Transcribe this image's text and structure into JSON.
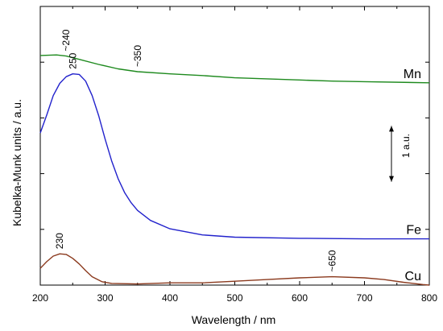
{
  "chart_data": {
    "type": "line",
    "xlabel": "Wavelength / nm",
    "ylabel": "Kubelka-Munk units / a.u.",
    "xlim": [
      200,
      800
    ],
    "ylim": [
      0,
      5
    ],
    "x_ticks": [
      "200",
      "300",
      "400",
      "500",
      "600",
      "700",
      "800"
    ],
    "grid": false,
    "legend": "none",
    "scale_bar": {
      "label": "1 a.u.",
      "value": 1
    },
    "series": [
      {
        "name": "Mn",
        "color": "#1e8a1e",
        "points": [
          [
            200,
            4.12
          ],
          [
            225,
            4.13
          ],
          [
            240,
            4.11
          ],
          [
            260,
            4.05
          ],
          [
            290,
            3.96
          ],
          [
            320,
            3.88
          ],
          [
            350,
            3.83
          ],
          [
            400,
            3.79
          ],
          [
            450,
            3.76
          ],
          [
            500,
            3.72
          ],
          [
            600,
            3.68
          ],
          [
            650,
            3.66
          ],
          [
            700,
            3.65
          ],
          [
            800,
            3.63
          ]
        ]
      },
      {
        "name": "Fe",
        "color": "#2222cc",
        "points": [
          [
            200,
            2.73
          ],
          [
            210,
            3.05
          ],
          [
            220,
            3.4
          ],
          [
            230,
            3.62
          ],
          [
            240,
            3.74
          ],
          [
            250,
            3.79
          ],
          [
            260,
            3.78
          ],
          [
            270,
            3.66
          ],
          [
            280,
            3.4
          ],
          [
            290,
            3.04
          ],
          [
            300,
            2.62
          ],
          [
            310,
            2.23
          ],
          [
            320,
            1.91
          ],
          [
            330,
            1.66
          ],
          [
            340,
            1.48
          ],
          [
            350,
            1.34
          ],
          [
            370,
            1.16
          ],
          [
            400,
            1.01
          ],
          [
            450,
            0.9
          ],
          [
            500,
            0.86
          ],
          [
            600,
            0.84
          ],
          [
            700,
            0.83
          ],
          [
            800,
            0.83
          ]
        ]
      },
      {
        "name": "Cu",
        "color": "#8b3a1e",
        "points": [
          [
            200,
            0.3
          ],
          [
            210,
            0.42
          ],
          [
            220,
            0.52
          ],
          [
            230,
            0.56
          ],
          [
            240,
            0.55
          ],
          [
            250,
            0.48
          ],
          [
            260,
            0.38
          ],
          [
            270,
            0.26
          ],
          [
            280,
            0.15
          ],
          [
            295,
            0.06
          ],
          [
            310,
            0.03
          ],
          [
            350,
            0.02
          ],
          [
            400,
            0.04
          ],
          [
            450,
            0.04
          ],
          [
            500,
            0.07
          ],
          [
            550,
            0.1
          ],
          [
            600,
            0.13
          ],
          [
            650,
            0.15
          ],
          [
            700,
            0.13
          ],
          [
            730,
            0.1
          ],
          [
            760,
            0.05
          ],
          [
            790,
            0.01
          ],
          [
            800,
            0.0
          ]
        ]
      }
    ],
    "annotations": [
      {
        "series": "Mn",
        "text": "~240",
        "x": 240
      },
      {
        "series": "Mn",
        "text": "~350",
        "x": 350
      },
      {
        "series": "Fe",
        "text": "250",
        "x": 250
      },
      {
        "series": "Cu",
        "text": "230",
        "x": 230
      },
      {
        "series": "Cu",
        "text": "~650",
        "x": 650
      }
    ]
  }
}
